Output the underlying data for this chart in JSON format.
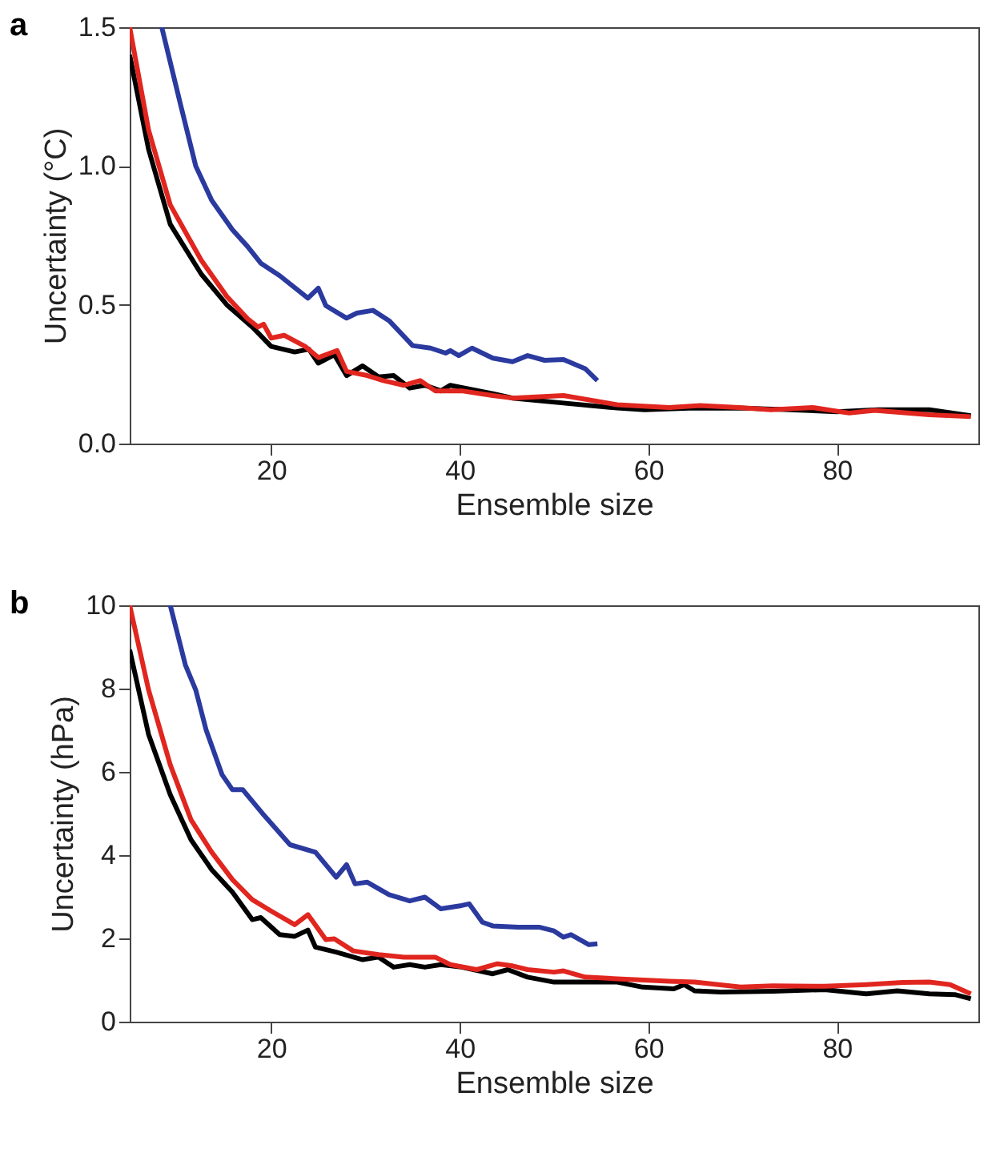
{
  "chart_data": [
    {
      "type": "line",
      "title": "a",
      "xlabel": "Ensemble size",
      "ylabel": "Uncertainty (°C)",
      "xlim": [
        5,
        95
      ],
      "ylim": [
        0,
        1.5
      ],
      "xticks": [
        20,
        40,
        60,
        80
      ],
      "yticks": [
        {
          "value": 0,
          "label": "0.0"
        },
        {
          "value": 0.5,
          "label": "0.5"
        },
        {
          "value": 1,
          "label": "1.0"
        },
        {
          "value": 1.5,
          "label": "1.5"
        }
      ],
      "grid": false,
      "line_style": "solid",
      "series": [
        {
          "color": "#000000",
          "x": [
            5,
            7,
            9.3,
            12.6,
            15.3,
            18,
            20,
            22.5,
            24,
            25,
            26.7,
            28,
            29.7,
            31.4,
            33,
            34.7,
            36.3,
            38,
            39,
            43.5,
            45.6,
            51,
            56.7,
            59.6,
            64.9,
            70,
            75,
            80,
            84.3,
            89.8,
            94.2
          ],
          "values": [
            1.4,
            1.06,
            0.79,
            0.61,
            0.5,
            0.42,
            0.35,
            0.33,
            0.34,
            0.29,
            0.32,
            0.245,
            0.28,
            0.24,
            0.245,
            0.2,
            0.21,
            0.19,
            0.21,
            0.18,
            0.164,
            0.146,
            0.128,
            0.122,
            0.128,
            0.128,
            0.122,
            0.115,
            0.122,
            0.122,
            0.1
          ]
        },
        {
          "color": "#e0261f",
          "x": [
            5,
            7,
            9.3,
            12.6,
            15.3,
            17.5,
            18.6,
            19.2,
            20,
            21.4,
            23.6,
            25,
            27,
            28,
            30.2,
            31.9,
            34.1,
            35.8,
            37.4,
            40.2,
            43.5,
            45.6,
            51,
            56.7,
            62.2,
            65.5,
            69.6,
            73,
            77.4,
            81.3,
            84,
            89.8,
            94.2
          ],
          "values": [
            1.5,
            1.13,
            0.86,
            0.66,
            0.53,
            0.45,
            0.42,
            0.43,
            0.38,
            0.39,
            0.35,
            0.31,
            0.335,
            0.26,
            0.245,
            0.227,
            0.21,
            0.227,
            0.19,
            0.19,
            0.173,
            0.164,
            0.173,
            0.14,
            0.13,
            0.137,
            0.13,
            0.122,
            0.13,
            0.11,
            0.12,
            0.104,
            0.097
          ]
        },
        {
          "color": "#2b3a9f",
          "x": [
            8.4,
            10.4,
            12,
            13.7,
            15.9,
            17.5,
            18.9,
            20.9,
            23.9,
            25,
            25.8,
            28,
            29.1,
            30.8,
            32.5,
            35,
            36.9,
            38.5,
            39,
            39.9,
            41.3,
            43.5,
            45.6,
            47.2,
            49,
            51,
            53.3,
            54.6
          ],
          "values": [
            1.5,
            1.22,
            1.0,
            0.876,
            0.77,
            0.71,
            0.65,
            0.605,
            0.524,
            0.56,
            0.497,
            0.452,
            0.47,
            0.48,
            0.443,
            0.353,
            0.344,
            0.326,
            0.335,
            0.317,
            0.344,
            0.308,
            0.295,
            0.317,
            0.3,
            0.303,
            0.27,
            0.227
          ]
        }
      ]
    },
    {
      "type": "line",
      "title": "b",
      "xlabel": "Ensemble size",
      "ylabel": "Uncertainty (hPa)",
      "xlim": [
        5,
        95
      ],
      "ylim": [
        0,
        10
      ],
      "xticks": [
        20,
        40,
        60,
        80
      ],
      "yticks": [
        0,
        2,
        4,
        6,
        8,
        10
      ],
      "grid": false,
      "line_style": "solid",
      "series": [
        {
          "color": "#000000",
          "x": [
            5,
            7,
            9.3,
            11.5,
            13.7,
            15.9,
            18,
            18.9,
            20.9,
            22.5,
            23.9,
            24.7,
            26.9,
            29.7,
            31.4,
            33,
            34.7,
            36.3,
            38,
            40.2,
            43.5,
            45.1,
            47.2,
            50,
            53.3,
            56.7,
            59.4,
            62.7,
            63.8,
            64.9,
            67.7,
            73.2,
            78.7,
            83.1,
            86.4,
            89.8,
            92.5,
            94.2
          ],
          "values": [
            8.93,
            6.9,
            5.45,
            4.37,
            3.65,
            3.11,
            2.45,
            2.5,
            2.09,
            2.05,
            2.2,
            1.79,
            1.67,
            1.49,
            1.55,
            1.31,
            1.37,
            1.31,
            1.37,
            1.31,
            1.15,
            1.25,
            1.07,
            0.95,
            0.95,
            0.95,
            0.83,
            0.79,
            0.89,
            0.74,
            0.71,
            0.73,
            0.77,
            0.67,
            0.74,
            0.67,
            0.65,
            0.55
          ]
        },
        {
          "color": "#e0261f",
          "x": [
            5,
            7,
            9.3,
            11.5,
            13.7,
            15.9,
            18,
            20.2,
            22.5,
            23.9,
            25.8,
            26.7,
            28.7,
            31.4,
            34.1,
            37.4,
            39,
            41.8,
            44,
            45.6,
            47.2,
            50,
            51,
            53.3,
            56.7,
            62.2,
            64.9,
            69.8,
            73.2,
            78.7,
            83.1,
            87,
            89.8,
            92,
            94.2
          ],
          "values": [
            10,
            7.97,
            6.17,
            4.85,
            4.07,
            3.41,
            2.93,
            2.63,
            2.33,
            2.57,
            1.97,
            1.99,
            1.7,
            1.61,
            1.55,
            1.55,
            1.37,
            1.25,
            1.39,
            1.34,
            1.25,
            1.19,
            1.22,
            1.07,
            1.03,
            0.97,
            0.95,
            0.83,
            0.86,
            0.85,
            0.89,
            0.94,
            0.95,
            0.89,
            0.67
          ]
        },
        {
          "color": "#2b3a9f",
          "x": [
            9.3,
            10.9,
            12,
            13.1,
            14.8,
            15.9,
            17,
            19.2,
            22,
            24.7,
            26.9,
            28,
            28.9,
            30.2,
            32.5,
            34.7,
            36.3,
            38,
            40.2,
            41,
            42.4,
            43.5,
            46.2,
            48.4,
            50,
            51,
            51.8,
            53.7,
            54.6
          ],
          "values": [
            10,
            8.57,
            7.97,
            7.01,
            5.93,
            5.57,
            5.57,
            4.97,
            4.25,
            4.07,
            3.47,
            3.77,
            3.31,
            3.35,
            3.05,
            2.9,
            2.99,
            2.71,
            2.79,
            2.83,
            2.39,
            2.3,
            2.27,
            2.27,
            2.18,
            2.03,
            2.09,
            1.85,
            1.87
          ]
        }
      ]
    }
  ]
}
